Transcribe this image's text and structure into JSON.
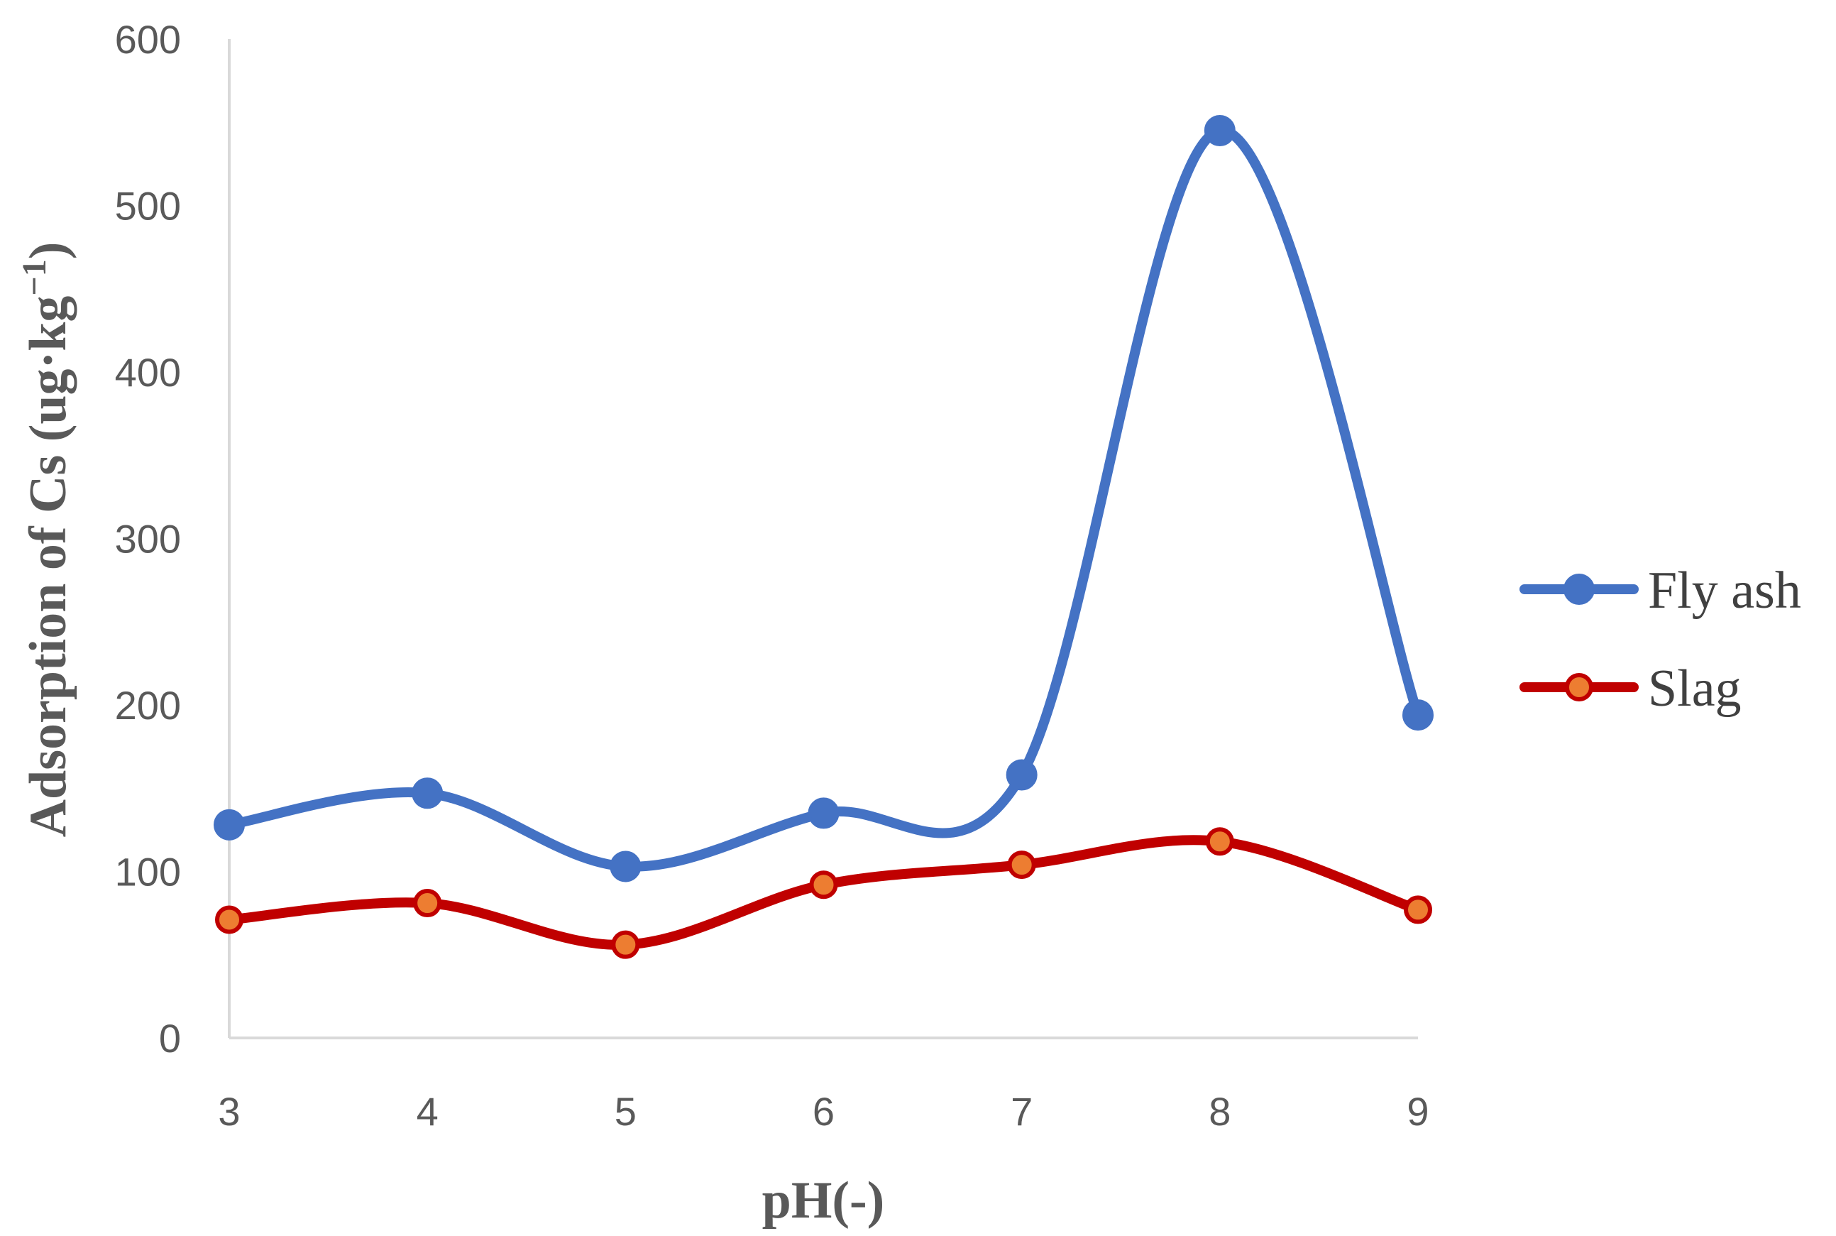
{
  "chart_data": {
    "type": "line",
    "smoothed": true,
    "x": [
      3,
      4,
      5,
      6,
      7,
      8,
      9
    ],
    "xticks": [
      "3",
      "4",
      "5",
      "6",
      "7",
      "8",
      "9"
    ],
    "xlim": [
      3,
      9
    ],
    "ylim": [
      0,
      600
    ],
    "yticks": [
      "0",
      "100",
      "200",
      "300",
      "400",
      "500",
      "600"
    ],
    "xlabel": "pH(-)",
    "ylabel": "Adsorption of Cs (ug·kg",
    "ylabel_sup": "−1",
    "ylabel_close": ")",
    "grid": false,
    "legend_position": "right",
    "series": [
      {
        "name": "Fly ash",
        "values": [
          128,
          147,
          103,
          135,
          158,
          545,
          194
        ],
        "color": "#4472C4",
        "marker_fill": "#4472C4"
      },
      {
        "name": "Slag",
        "values": [
          71,
          81,
          56,
          92,
          104,
          118,
          77
        ],
        "color": "#C00000",
        "marker_fill": "#ED7D31"
      }
    ]
  }
}
